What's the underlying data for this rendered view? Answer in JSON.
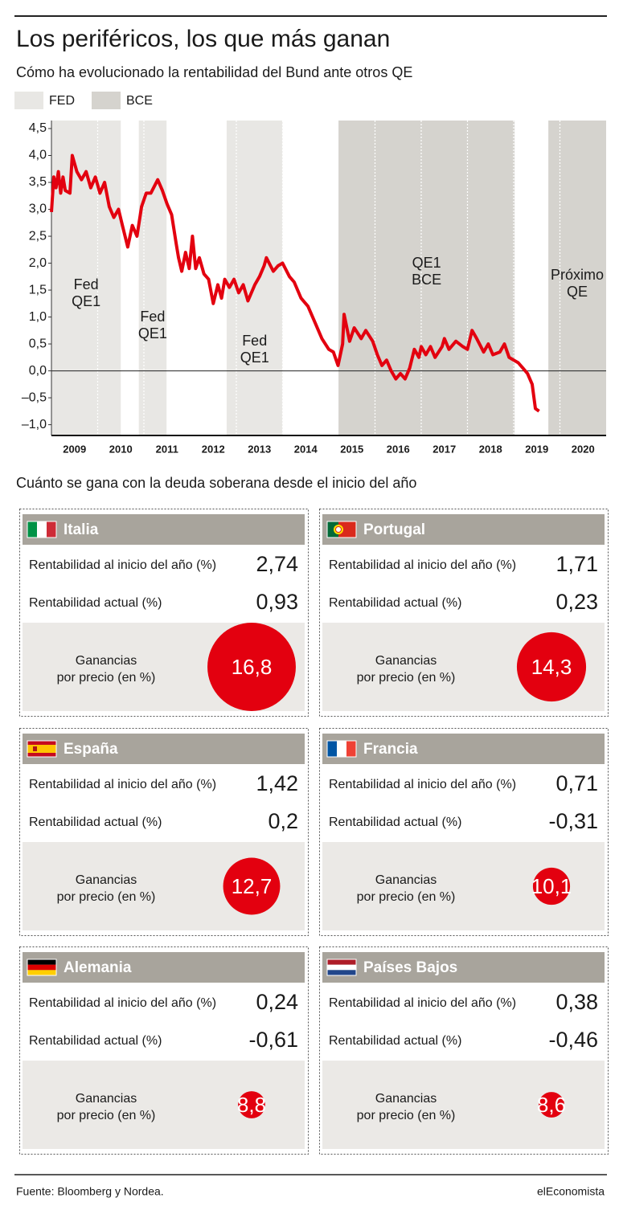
{
  "header": {
    "title": "Los periféricos, los que más ganan",
    "subtitle": "Cómo ha evolucionado la rentabilidad del Bund ante otros QE"
  },
  "chart_data": {
    "type": "line",
    "legend": [
      {
        "name": "FED",
        "color": "#e8e7e4"
      },
      {
        "name": "BCE",
        "color": "#d5d3ce"
      }
    ],
    "regions": [
      {
        "start": 2009.0,
        "end": 2010.5,
        "color": "#e8e7e4",
        "labels": [
          "Fed",
          "QE1"
        ]
      },
      {
        "start": 2010.89,
        "end": 2011.49,
        "color": "#e8e7e4",
        "labels": [
          "Fed",
          "QE1"
        ]
      },
      {
        "start": 2012.79,
        "end": 2014.0,
        "color": "#e8e7e4",
        "labels": [
          "Fed",
          "QE1"
        ]
      },
      {
        "start": 2015.21,
        "end": 2019.02,
        "color": "#d5d3ce",
        "labels": [
          "QE1",
          "BCE"
        ]
      },
      {
        "start": 2019.75,
        "end": 2021.0,
        "color": "#d5d3ce",
        "labels": [
          "Próximo",
          "QE"
        ]
      }
    ],
    "x": [
      2009.0,
      2009.05,
      2009.1,
      2009.15,
      2009.2,
      2009.25,
      2009.3,
      2009.4,
      2009.45,
      2009.55,
      2009.65,
      2009.75,
      2009.85,
      2009.95,
      2010.05,
      2010.15,
      2010.25,
      2010.35,
      2010.45,
      2010.55,
      2010.65,
      2010.75,
      2010.85,
      2010.95,
      2011.05,
      2011.15,
      2011.3,
      2011.4,
      2011.5,
      2011.6,
      2011.7,
      2011.75,
      2011.82,
      2011.9,
      2011.98,
      2012.05,
      2012.12,
      2012.2,
      2012.3,
      2012.4,
      2012.5,
      2012.6,
      2012.68,
      2012.75,
      2012.85,
      2012.95,
      2013.05,
      2013.15,
      2013.25,
      2013.4,
      2013.5,
      2013.6,
      2013.65,
      2013.8,
      2013.9,
      2014.0,
      2014.15,
      2014.25,
      2014.4,
      2014.55,
      2014.7,
      2014.85,
      2015.0,
      2015.1,
      2015.2,
      2015.3,
      2015.33,
      2015.45,
      2015.55,
      2015.7,
      2015.8,
      2015.95,
      2016.05,
      2016.15,
      2016.25,
      2016.35,
      2016.45,
      2016.55,
      2016.65,
      2016.75,
      2016.85,
      2016.95,
      2017.0,
      2017.1,
      2017.2,
      2017.3,
      2017.45,
      2017.5,
      2017.6,
      2017.75,
      2017.9,
      2018.0,
      2018.1,
      2018.2,
      2018.35,
      2018.45,
      2018.55,
      2018.7,
      2018.8,
      2018.9,
      2019.0,
      2019.1,
      2019.2,
      2019.3,
      2019.4,
      2019.47,
      2019.55
    ],
    "series": [
      {
        "color": "#e3000f",
        "values": [
          2.95,
          3.6,
          3.4,
          3.7,
          3.3,
          3.6,
          3.35,
          3.3,
          4.0,
          3.7,
          3.55,
          3.7,
          3.4,
          3.6,
          3.3,
          3.5,
          3.05,
          2.85,
          3.0,
          2.65,
          2.3,
          2.7,
          2.5,
          3.05,
          3.3,
          3.3,
          3.55,
          3.35,
          3.1,
          2.9,
          2.35,
          2.1,
          1.85,
          2.2,
          1.9,
          2.5,
          1.9,
          2.1,
          1.8,
          1.7,
          1.25,
          1.6,
          1.35,
          1.7,
          1.55,
          1.7,
          1.45,
          1.6,
          1.3,
          1.6,
          1.75,
          1.95,
          2.1,
          1.85,
          1.95,
          2.0,
          1.75,
          1.65,
          1.35,
          1.2,
          0.9,
          0.6,
          0.4,
          0.35,
          0.1,
          0.5,
          1.05,
          0.55,
          0.8,
          0.6,
          0.75,
          0.55,
          0.3,
          0.1,
          0.2,
          0.0,
          -0.15,
          -0.05,
          -0.15,
          0.05,
          0.4,
          0.25,
          0.45,
          0.3,
          0.45,
          0.25,
          0.45,
          0.6,
          0.4,
          0.55,
          0.45,
          0.4,
          0.75,
          0.6,
          0.35,
          0.5,
          0.3,
          0.35,
          0.5,
          0.25,
          0.2,
          0.15,
          0.05,
          -0.05,
          -0.25,
          -0.7,
          -0.75
        ]
      }
    ],
    "xlim": [
      2009,
      2021
    ],
    "xticks": [
      {
        "value": 2009.5,
        "label": "2009"
      },
      {
        "value": 2010.5,
        "label": "2010"
      },
      {
        "value": 2011.5,
        "label": "2011"
      },
      {
        "value": 2012.5,
        "label": "2012"
      },
      {
        "value": 2013.5,
        "label": "2013"
      },
      {
        "value": 2014.5,
        "label": "2014"
      },
      {
        "value": 2015.5,
        "label": "2015"
      },
      {
        "value": 2016.5,
        "label": "2016"
      },
      {
        "value": 2017.5,
        "label": "2017"
      },
      {
        "value": 2018.5,
        "label": "2018"
      },
      {
        "value": 2019.5,
        "label": "2019"
      },
      {
        "value": 2020.5,
        "label": "2020"
      }
    ],
    "xgrid": [
      2010,
      2011,
      2012,
      2013,
      2014,
      2015,
      2016,
      2017,
      2018,
      2019,
      2020
    ],
    "ylim": [
      -1.2,
      4.5
    ],
    "yticks": [
      {
        "value": 4.5,
        "label": "4,5"
      },
      {
        "value": 4.0,
        "label": "4,0"
      },
      {
        "value": 3.5,
        "label": "3,5"
      },
      {
        "value": 3.0,
        "label": "3,0"
      },
      {
        "value": 2.5,
        "label": "2,5"
      },
      {
        "value": 2.0,
        "label": "2,0"
      },
      {
        "value": 1.5,
        "label": "1,5"
      },
      {
        "value": 1.0,
        "label": "1,0"
      },
      {
        "value": 0.5,
        "label": "0,5"
      },
      {
        "value": 0,
        "label": "0,0"
      },
      {
        "value": -0.5,
        "label": "–0,5"
      },
      {
        "value": -1.0,
        "label": "–1,0"
      }
    ]
  },
  "section_title": "Cuánto se gana con la deuda soberana desde el inicio del año",
  "cards": [
    {
      "country": "Italia",
      "rows": [
        {
          "label": "Rentabilidad al inicio del año (%)",
          "value": "2,74"
        },
        {
          "label": "Rentabilidad actual (%)",
          "value": "0,93"
        }
      ],
      "gain_label": [
        "Ganancias",
        "por precio (en %)"
      ],
      "gain": {
        "value": 16.8,
        "label": "16,8"
      }
    },
    {
      "country": "Portugal",
      "rows": [
        {
          "label": "Rentabilidad al inicio del año (%)",
          "value": "1,71"
        },
        {
          "label": "Rentabilidad actual (%)",
          "value": "0,23"
        }
      ],
      "gain_label": [
        "Ganancias",
        "por precio (en %)"
      ],
      "gain": {
        "value": 14.3,
        "label": "14,3"
      }
    },
    {
      "country": "España",
      "rows": [
        {
          "label": "Rentabilidad al inicio del año (%)",
          "value": "1,42"
        },
        {
          "label": "Rentabilidad actual (%)",
          "value": "0,2"
        }
      ],
      "gain_label": [
        "Ganancias",
        "por precio (en %)"
      ],
      "gain": {
        "value": 12.7,
        "label": "12,7"
      }
    },
    {
      "country": "Francia",
      "rows": [
        {
          "label": "Rentabilidad al inicio del año (%)",
          "value": "0,71"
        },
        {
          "label": "Rentabilidad actual (%)",
          "value": "-0,31"
        }
      ],
      "gain_label": [
        "Ganancias",
        "por precio (en %)"
      ],
      "gain": {
        "value": 10.1,
        "label": "10,1"
      }
    },
    {
      "country": "Alemania",
      "rows": [
        {
          "label": "Rentabilidad al inicio del año (%)",
          "value": "0,24"
        },
        {
          "label": "Rentabilidad actual (%)",
          "value": "-0,61"
        }
      ],
      "gain_label": [
        "Ganancias",
        "por precio (en %)"
      ],
      "gain": {
        "value": 8.8,
        "label": "8,8"
      }
    },
    {
      "country": "Países Bajos",
      "rows": [
        {
          "label": "Rentabilidad al inicio del año (%)",
          "value": "0,38"
        },
        {
          "label": "Rentabilidad actual (%)",
          "value": "-0,46"
        }
      ],
      "gain_label": [
        "Ganancias",
        "por precio (en %)"
      ],
      "gain": {
        "value": 8.6,
        "label": "8,6"
      }
    }
  ],
  "footer": {
    "source": "Fuente: Bloomberg y Nordea.",
    "brand": "elEconomista"
  }
}
